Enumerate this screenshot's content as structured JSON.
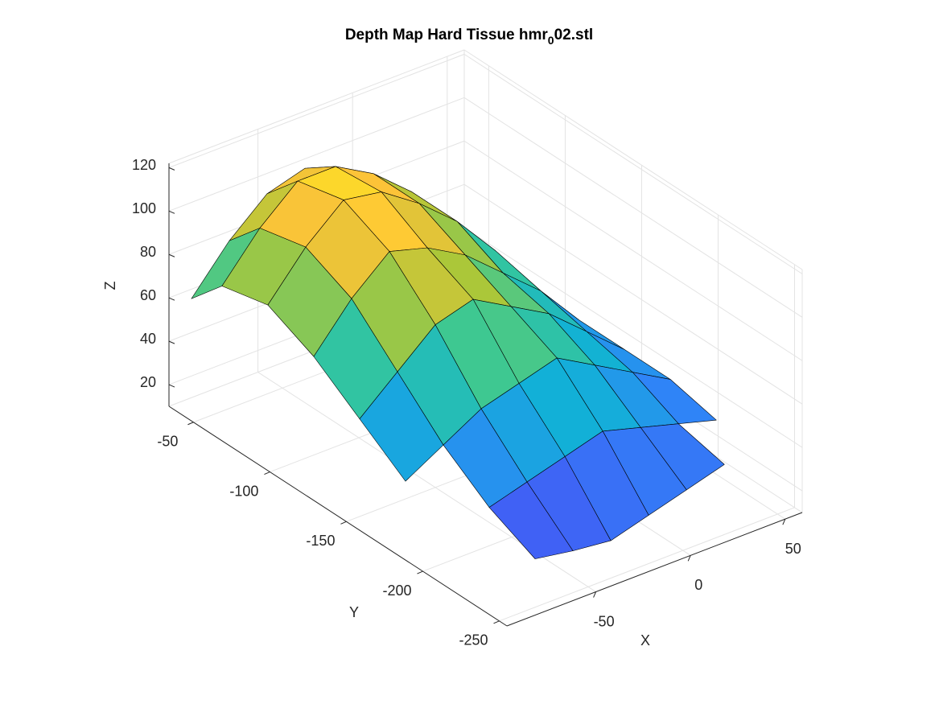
{
  "chart_data": {
    "type": "surface",
    "title": "Depth Map Hard Tissue hmr",
    "title_subscript": "0",
    "title_suffix": "02.stl",
    "xlabel": "X",
    "ylabel": "Y",
    "zlabel": "Z",
    "colormap": "parula",
    "grid": true,
    "xlim": [
      -97,
      59
    ],
    "ylim": [
      -255,
      -34
    ],
    "zlim": [
      10,
      122
    ],
    "xticks": [
      -50,
      0,
      50
    ],
    "yticks": [
      -250,
      -200,
      -150,
      -100,
      -50
    ],
    "zticks": [
      20,
      40,
      60,
      80,
      100,
      120
    ],
    "x": [
      -90,
      -70,
      -50,
      -30,
      -10,
      10,
      30,
      50
    ],
    "y": [
      -240,
      -210,
      -180,
      -150,
      -120,
      -90,
      -60,
      -40
    ],
    "z": [
      [
        null,
        25,
        22,
        20,
        25,
        30,
        35,
        null
      ],
      [
        null,
        35,
        40,
        45,
        50,
        45,
        40,
        35
      ],
      [
        40,
        50,
        60,
        65,
        70,
        60,
        50,
        40
      ],
      [
        55,
        70,
        85,
        90,
        80,
        70,
        55,
        40
      ],
      [
        70,
        90,
        105,
        100,
        90,
        75,
        60,
        40
      ],
      [
        80,
        100,
        115,
        112,
        100,
        85,
        65,
        40
      ],
      [
        75,
        95,
        110,
        110,
        100,
        85,
        60,
        35
      ],
      [
        60,
        80,
        95,
        100,
        90,
        75,
        50,
        30
      ]
    ]
  }
}
